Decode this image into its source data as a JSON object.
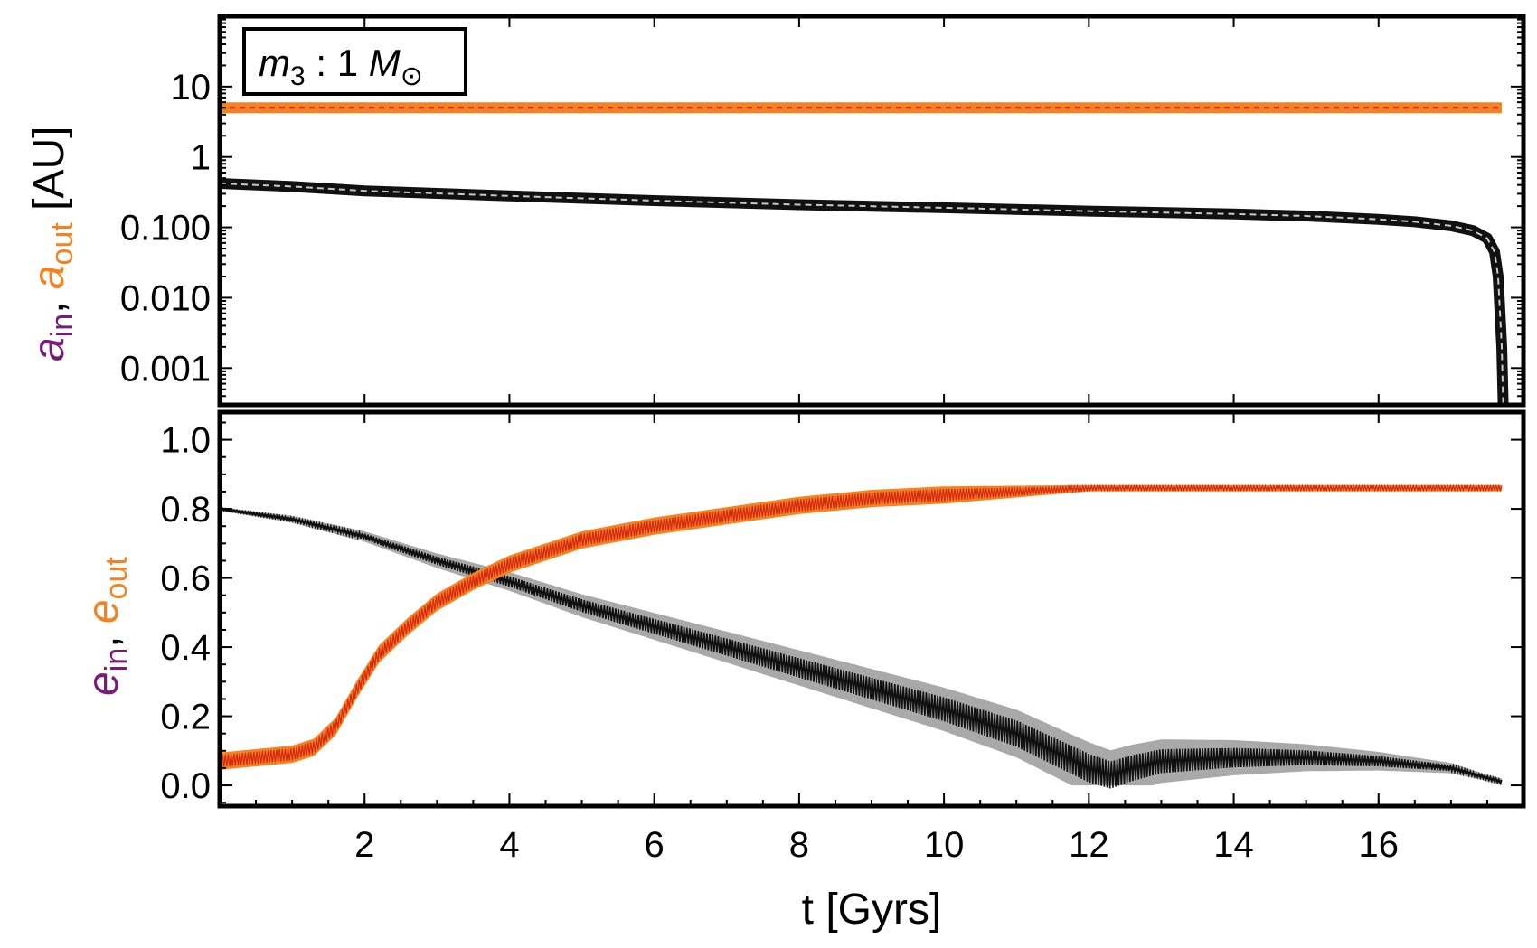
{
  "colors": {
    "inner_purple": "#7a1a7a",
    "outer_orange": "#f58220",
    "outer_dashed_red": "#cc1010",
    "inner_black": "#111111",
    "inner_gray": "#9a9a9a"
  },
  "chart_data": [
    {
      "type": "line",
      "panel": "top",
      "yscale": "log",
      "annotation": {
        "label_main": "m",
        "label_sub": "3",
        "label_rest": " : 1 ",
        "label_mass": "M",
        "label_mass_sub": "⊙"
      },
      "ylabel_parts": {
        "a_in_var": "a",
        "a_in_sub": "in",
        "comma": ", ",
        "a_out_var": "a",
        "a_out_sub": "out",
        "units": " [AU]"
      },
      "ylim": [
        0.0003,
        100
      ],
      "xlim": [
        0,
        18
      ],
      "yticks": [
        {
          "value": 10,
          "label": "10"
        },
        {
          "value": 1,
          "label": "1"
        },
        {
          "value": 0.1,
          "label": "0.100"
        },
        {
          "value": 0.01,
          "label": "0.010"
        },
        {
          "value": 0.001,
          "label": "0.001"
        }
      ],
      "series": [
        {
          "name": "a_out",
          "style": "orange band",
          "x": [
            0,
            17.7
          ],
          "values": [
            5,
            5
          ]
        },
        {
          "name": "a_in",
          "style": "black band",
          "x": [
            0,
            1,
            2,
            4,
            6,
            8,
            10,
            12,
            14,
            15,
            16,
            16.5,
            17,
            17.3,
            17.5,
            17.6,
            17.65,
            17.7,
            17.72
          ],
          "values": [
            0.42,
            0.38,
            0.33,
            0.28,
            0.24,
            0.21,
            0.19,
            0.17,
            0.155,
            0.145,
            0.13,
            0.12,
            0.105,
            0.09,
            0.07,
            0.045,
            0.02,
            0.002,
            0.0003
          ]
        }
      ]
    },
    {
      "type": "line",
      "panel": "bottom",
      "ylabel_parts": {
        "e_in_var": "e",
        "e_in_sub": "in",
        "comma": ", ",
        "e_out_var": "e",
        "e_out_sub": "out"
      },
      "ylim": [
        -0.06,
        1.08
      ],
      "xlim": [
        0,
        18
      ],
      "xlabel": "t [Gyrs]",
      "xticks": [
        {
          "value": 2,
          "label": "2"
        },
        {
          "value": 4,
          "label": "4"
        },
        {
          "value": 6,
          "label": "6"
        },
        {
          "value": 8,
          "label": "8"
        },
        {
          "value": 10,
          "label": "10"
        },
        {
          "value": 12,
          "label": "12"
        },
        {
          "value": 14,
          "label": "14"
        },
        {
          "value": 16,
          "label": "16"
        }
      ],
      "yticks": [
        {
          "value": 1.0,
          "label": "1.0"
        },
        {
          "value": 0.8,
          "label": "0.8"
        },
        {
          "value": 0.6,
          "label": "0.6"
        },
        {
          "value": 0.4,
          "label": "0.4"
        },
        {
          "value": 0.2,
          "label": "0.2"
        },
        {
          "value": 0.0,
          "label": "0.0"
        }
      ],
      "series": [
        {
          "name": "e_out",
          "style": "orange band",
          "x": [
            0,
            0.5,
            1,
            1.3,
            1.6,
            1.9,
            2.2,
            2.6,
            3,
            3.5,
            4,
            5,
            6,
            7,
            8,
            9,
            10,
            11,
            12,
            13,
            14,
            15,
            16,
            17.7
          ],
          "values": [
            0.07,
            0.08,
            0.09,
            0.11,
            0.17,
            0.28,
            0.38,
            0.46,
            0.53,
            0.59,
            0.64,
            0.71,
            0.75,
            0.78,
            0.81,
            0.83,
            0.84,
            0.85,
            0.86,
            0.86,
            0.86,
            0.86,
            0.86,
            0.86
          ]
        },
        {
          "name": "e_in",
          "style": "black/gray band",
          "x": [
            0,
            1,
            2,
            3,
            4,
            5,
            6,
            7,
            8,
            9,
            10,
            11,
            12,
            12.3,
            12.6,
            13,
            14,
            15,
            16,
            17,
            17.7
          ],
          "values": [
            0.8,
            0.77,
            0.72,
            0.65,
            0.59,
            0.52,
            0.46,
            0.4,
            0.34,
            0.28,
            0.22,
            0.15,
            0.05,
            0.03,
            0.05,
            0.07,
            0.08,
            0.08,
            0.07,
            0.05,
            0.01
          ]
        }
      ]
    }
  ]
}
